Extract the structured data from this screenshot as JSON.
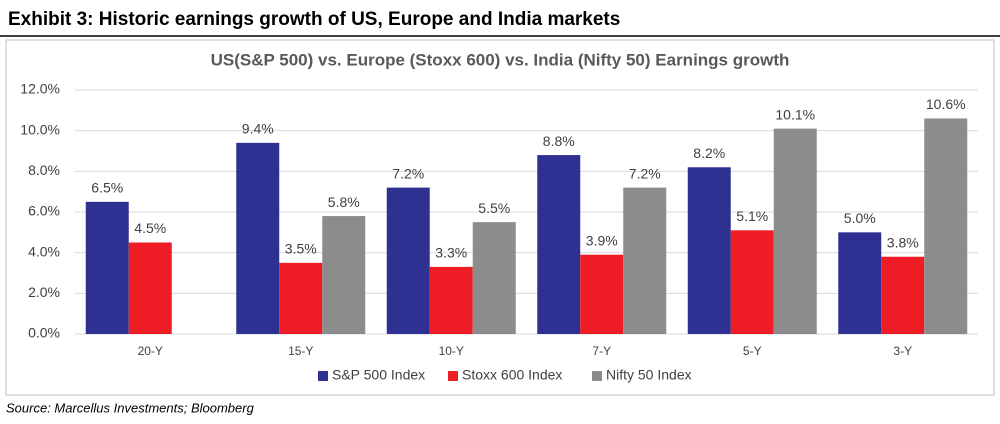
{
  "header": "Exhibit 3: Historic earnings growth of US, Europe and India markets",
  "source": "Source: Marcellus Investments; Bloomberg",
  "chart_data": {
    "type": "bar",
    "title": "US(S&P 500) vs. Europe (Stoxx 600) vs. India (Nifty 50) Earnings growth",
    "categories": [
      "20-Y",
      "15-Y",
      "10-Y",
      "7-Y",
      "5-Y",
      "3-Y"
    ],
    "series": [
      {
        "name": "S&P 500 Index",
        "color": "#2e3192",
        "values": [
          6.5,
          9.4,
          7.2,
          8.8,
          8.2,
          5.0
        ],
        "value_labels": [
          "6.5%",
          "9.4%",
          "7.2%",
          "8.8%",
          "8.2%",
          "5.0%"
        ]
      },
      {
        "name": "Stoxx 600 Index",
        "color": "#ee1c25",
        "values": [
          4.5,
          3.5,
          3.3,
          3.9,
          5.1,
          3.8
        ],
        "value_labels": [
          "4.5%",
          "3.5%",
          "3.3%",
          "3.9%",
          "5.1%",
          "3.8%"
        ]
      },
      {
        "name": "Nifty 50 Index",
        "color": "#8c8c8c",
        "values": [
          null,
          5.8,
          5.5,
          7.2,
          10.1,
          10.6
        ],
        "value_labels": [
          null,
          "5.8%",
          "5.5%",
          "7.2%",
          "10.1%",
          "10.6%"
        ]
      }
    ],
    "ylim": [
      0,
      12
    ],
    "yticks": [
      {
        "value": 0,
        "label": "0.0%"
      },
      {
        "value": 2,
        "label": "2.0%"
      },
      {
        "value": 4,
        "label": "4.0%"
      },
      {
        "value": 6,
        "label": "6.0%"
      },
      {
        "value": 8,
        "label": "8.0%"
      },
      {
        "value": 10,
        "label": "10.0%"
      },
      {
        "value": 12,
        "label": "12.0%"
      }
    ],
    "grid": true,
    "legend": "bottom"
  }
}
